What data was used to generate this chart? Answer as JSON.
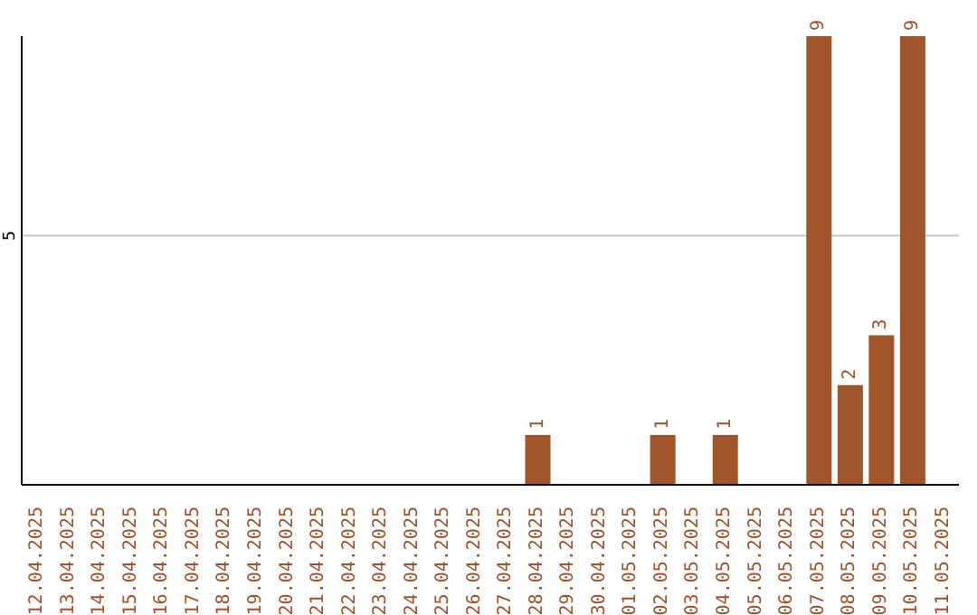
{
  "chart_data": {
    "type": "bar",
    "categories": [
      "12.04.2025",
      "13.04.2025",
      "14.04.2025",
      "15.04.2025",
      "16.04.2025",
      "17.04.2025",
      "18.04.2025",
      "19.04.2025",
      "20.04.2025",
      "21.04.2025",
      "22.04.2025",
      "23.04.2025",
      "24.04.2025",
      "25.04.2025",
      "26.04.2025",
      "27.04.2025",
      "28.04.2025",
      "29.04.2025",
      "30.04.2025",
      "01.05.2025",
      "02.05.2025",
      "03.05.2025",
      "04.05.2025",
      "05.05.2025",
      "06.05.2025",
      "07.05.2025",
      "08.05.2025",
      "09.05.2025",
      "10.05.2025",
      "11.05.2025"
    ],
    "values": [
      null,
      null,
      null,
      null,
      null,
      null,
      null,
      null,
      null,
      null,
      null,
      null,
      null,
      null,
      null,
      null,
      1,
      null,
      null,
      null,
      1,
      null,
      1,
      null,
      null,
      9,
      2,
      3,
      9,
      null
    ],
    "data_labels": true,
    "color": "#a0552a",
    "ylim": [
      0,
      9
    ],
    "yticks": [
      5
    ],
    "grid": "y"
  }
}
